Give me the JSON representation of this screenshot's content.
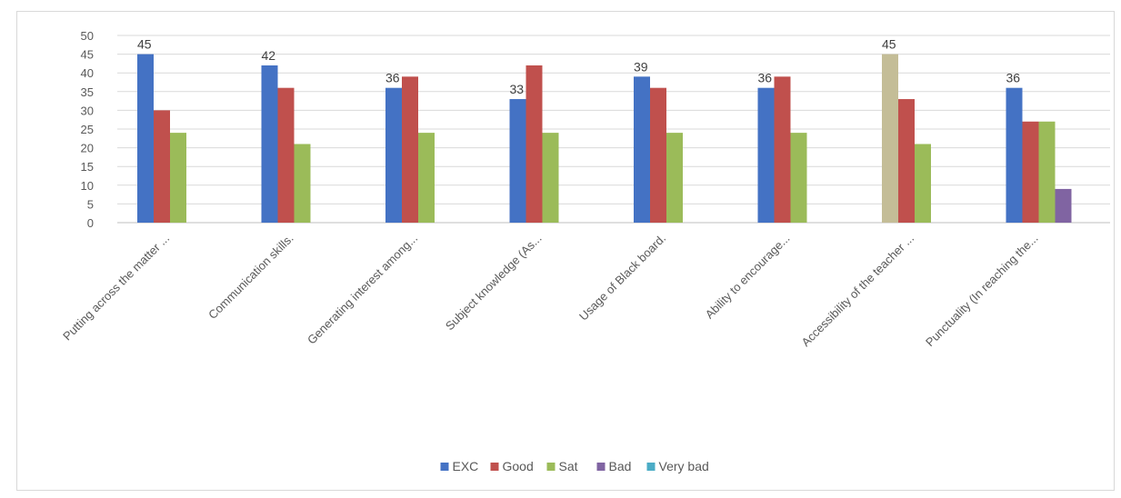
{
  "chart_data": {
    "type": "bar",
    "title": "",
    "xlabel": "",
    "ylabel": "",
    "ylim": [
      0,
      50
    ],
    "ytick_step": 5,
    "grid": true,
    "legend_position": "bottom",
    "categories": [
      "Putting across the matter ...",
      "Communication skills.",
      "Generating interest among...",
      "Subject knowledge (As...",
      "Usage of Black board.",
      "Ability to encourage...",
      "Accessibility of the teacher ...",
      "Punctuality (In reaching the..."
    ],
    "series": [
      {
        "name": "EXC",
        "color": "#4472c4",
        "values": [
          45,
          42,
          36,
          33,
          39,
          36,
          45,
          36
        ]
      },
      {
        "name": "Good",
        "color": "#c0504d",
        "values": [
          30,
          36,
          39,
          42,
          36,
          39,
          33,
          27
        ]
      },
      {
        "name": "Sat",
        "color": "#9bbb59",
        "values": [
          24,
          21,
          24,
          24,
          24,
          24,
          21,
          27
        ]
      },
      {
        "name": "Bad",
        "color": "#8064a2",
        "values": [
          0,
          0,
          0,
          0,
          0,
          0,
          0,
          9
        ]
      },
      {
        "name": "Very bad",
        "color": "#4bacc6",
        "values": [
          0,
          0,
          0,
          0,
          0,
          0,
          0,
          0
        ]
      }
    ],
    "data_labels": [
      {
        "category_index": 0,
        "series": "EXC",
        "text": "45"
      },
      {
        "category_index": 1,
        "series": "EXC",
        "text": "42"
      },
      {
        "category_index": 2,
        "series": "EXC",
        "text": "36"
      },
      {
        "category_index": 3,
        "series": "EXC",
        "text": "33"
      },
      {
        "category_index": 4,
        "series": "EXC",
        "text": "39"
      },
      {
        "category_index": 5,
        "series": "EXC",
        "text": "36"
      },
      {
        "category_index": 6,
        "series": "EXC",
        "text": "45"
      },
      {
        "category_index": 7,
        "series": "EXC",
        "text": "36"
      }
    ],
    "highlighted_points": [
      {
        "category_index": 6,
        "series": "EXC",
        "color": "#c4bd97"
      }
    ]
  }
}
